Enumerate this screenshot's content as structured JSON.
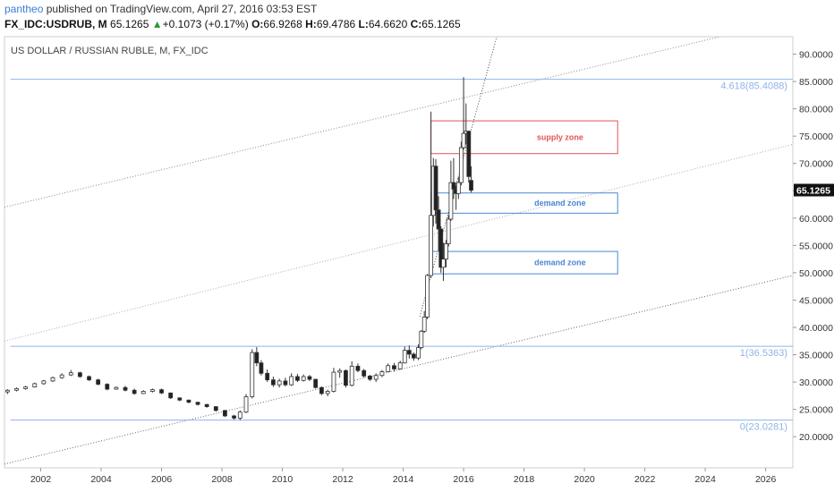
{
  "header": {
    "author": "pantheo",
    "published": "published on TradingView.com, April 27, 2016 03:53 EST",
    "symbol": "FX_IDC:USDRUB, M",
    "last": "65.1265",
    "change_arrow": "▲",
    "change": "+0.1073 (+0.17%)",
    "o_label": "O:",
    "o_value": "66.9268",
    "h_label": "H:",
    "h_value": "69.4786",
    "l_label": "L:",
    "l_value": "64.6620",
    "c_label": "C:",
    "c_value": "65.1265"
  },
  "chart_data": {
    "type": "candlestick",
    "title": "US DOLLAR / RUSSIAN RUBLE, M, FX_IDC",
    "x_range": [
      2000.8,
      2026.9
    ],
    "y_range": [
      14.3,
      93.2
    ],
    "y_ticks": [
      "20.0000",
      "25.0000",
      "30.0000",
      "35.0000",
      "40.0000",
      "45.0000",
      "50.0000",
      "55.0000",
      "60.0000",
      "65.0000",
      "70.0000",
      "75.0000",
      "80.0000",
      "85.0000",
      "90.0000"
    ],
    "y_tick_values": [
      20,
      25,
      30,
      35,
      40,
      45,
      50,
      55,
      60,
      65,
      70,
      75,
      80,
      85,
      90
    ],
    "x_ticks": [
      "2002",
      "2004",
      "2006",
      "2008",
      "2010",
      "2012",
      "2014",
      "2016",
      "2018",
      "2020",
      "2022",
      "2024",
      "2026"
    ],
    "x_tick_values": [
      2002,
      2004,
      2006,
      2008,
      2010,
      2012,
      2014,
      2016,
      2018,
      2020,
      2022,
      2024,
      2026
    ],
    "last_price_label": "65.1265",
    "last_price": 65.1265,
    "fib_levels": [
      {
        "label": "4.618(85.4088)",
        "value": 85.4088
      },
      {
        "label": "1(36.5363)",
        "value": 36.5363
      },
      {
        "label": "0(23.0281)",
        "value": 23.0281
      }
    ],
    "zones": [
      {
        "label": "supply zone",
        "color": "#e05555",
        "x_start": 2014.92,
        "x_end": 2021.1,
        "y_low": 71.8,
        "y_high": 77.8
      },
      {
        "label": "demand zone",
        "color": "#4a86d4",
        "x_start": 2014.92,
        "x_end": 2021.1,
        "y_low": 60.9,
        "y_high": 64.6
      },
      {
        "label": "demand zone",
        "color": "#4a86d4",
        "x_start": 2014.92,
        "x_end": 2021.1,
        "y_low": 49.8,
        "y_high": 53.9
      }
    ],
    "trend_lines": [
      {
        "x1": 2000.8,
        "y1": 15.0,
        "x2": 2026.9,
        "y2": 49.5,
        "color": "#666"
      },
      {
        "x1": 2000.8,
        "y1": 37.5,
        "x2": 2026.9,
        "y2": 73.5,
        "color": "#aaa"
      },
      {
        "x1": 2000.8,
        "y1": 62.0,
        "x2": 2024.5,
        "y2": 93.2,
        "color": "#888"
      },
      {
        "x1": 2014.55,
        "y1": 42.0,
        "x2": 2017.1,
        "y2": 93.2,
        "color": "#444"
      }
    ],
    "candles": [
      {
        "t": 2000.9,
        "o": 28.2,
        "h": 28.7,
        "l": 27.8,
        "c": 28.5
      },
      {
        "t": 2001.2,
        "o": 28.5,
        "h": 29.0,
        "l": 28.3,
        "c": 28.8
      },
      {
        "t": 2001.5,
        "o": 28.8,
        "h": 29.3,
        "l": 28.6,
        "c": 29.1
      },
      {
        "t": 2001.8,
        "o": 29.1,
        "h": 29.9,
        "l": 29.0,
        "c": 29.7
      },
      {
        "t": 2002.1,
        "o": 29.7,
        "h": 30.4,
        "l": 29.5,
        "c": 30.2
      },
      {
        "t": 2002.4,
        "o": 30.2,
        "h": 31.0,
        "l": 30.0,
        "c": 30.8
      },
      {
        "t": 2002.7,
        "o": 30.8,
        "h": 31.6,
        "l": 30.6,
        "c": 31.3
      },
      {
        "t": 2003.0,
        "o": 31.3,
        "h": 32.2,
        "l": 31.1,
        "c": 31.7
      },
      {
        "t": 2003.3,
        "o": 31.7,
        "h": 31.9,
        "l": 30.8,
        "c": 31.0
      },
      {
        "t": 2003.6,
        "o": 31.0,
        "h": 31.2,
        "l": 30.2,
        "c": 30.4
      },
      {
        "t": 2003.9,
        "o": 30.4,
        "h": 30.6,
        "l": 29.4,
        "c": 29.6
      },
      {
        "t": 2004.2,
        "o": 29.6,
        "h": 29.8,
        "l": 28.5,
        "c": 28.7
      },
      {
        "t": 2004.5,
        "o": 28.7,
        "h": 29.2,
        "l": 28.6,
        "c": 29.0
      },
      {
        "t": 2004.8,
        "o": 29.0,
        "h": 29.3,
        "l": 28.3,
        "c": 28.5
      },
      {
        "t": 2005.1,
        "o": 28.5,
        "h": 28.8,
        "l": 27.7,
        "c": 27.9
      },
      {
        "t": 2005.4,
        "o": 27.9,
        "h": 28.5,
        "l": 27.8,
        "c": 28.3
      },
      {
        "t": 2005.7,
        "o": 28.3,
        "h": 28.8,
        "l": 28.1,
        "c": 28.6
      },
      {
        "t": 2006.0,
        "o": 28.6,
        "h": 28.8,
        "l": 27.8,
        "c": 28.0
      },
      {
        "t": 2006.3,
        "o": 28.0,
        "h": 28.1,
        "l": 26.9,
        "c": 27.1
      },
      {
        "t": 2006.6,
        "o": 27.1,
        "h": 27.2,
        "l": 26.5,
        "c": 26.7
      },
      {
        "t": 2006.9,
        "o": 26.7,
        "h": 26.8,
        "l": 26.1,
        "c": 26.3
      },
      {
        "t": 2007.2,
        "o": 26.3,
        "h": 26.4,
        "l": 25.7,
        "c": 25.9
      },
      {
        "t": 2007.5,
        "o": 25.9,
        "h": 26.0,
        "l": 25.3,
        "c": 25.5
      },
      {
        "t": 2007.8,
        "o": 25.5,
        "h": 25.6,
        "l": 24.6,
        "c": 24.8
      },
      {
        "t": 2008.1,
        "o": 24.8,
        "h": 24.9,
        "l": 23.6,
        "c": 23.8
      },
      {
        "t": 2008.4,
        "o": 23.8,
        "h": 24.0,
        "l": 23.1,
        "c": 23.4
      },
      {
        "t": 2008.6,
        "o": 23.4,
        "h": 24.8,
        "l": 23.0,
        "c": 24.5
      },
      {
        "t": 2008.8,
        "o": 24.5,
        "h": 27.8,
        "l": 24.3,
        "c": 27.3
      },
      {
        "t": 2009.0,
        "o": 27.3,
        "h": 36.0,
        "l": 27.0,
        "c": 35.4
      },
      {
        "t": 2009.15,
        "o": 35.4,
        "h": 36.4,
        "l": 32.9,
        "c": 33.5
      },
      {
        "t": 2009.3,
        "o": 33.5,
        "h": 34.0,
        "l": 31.2,
        "c": 31.6
      },
      {
        "t": 2009.5,
        "o": 31.6,
        "h": 32.3,
        "l": 30.0,
        "c": 30.4
      },
      {
        "t": 2009.7,
        "o": 30.4,
        "h": 31.0,
        "l": 29.1,
        "c": 29.5
      },
      {
        "t": 2009.9,
        "o": 29.5,
        "h": 30.6,
        "l": 29.0,
        "c": 30.2
      },
      {
        "t": 2010.1,
        "o": 30.2,
        "h": 30.8,
        "l": 29.2,
        "c": 29.5
      },
      {
        "t": 2010.3,
        "o": 29.5,
        "h": 31.6,
        "l": 29.3,
        "c": 31.0
      },
      {
        "t": 2010.5,
        "o": 31.0,
        "h": 31.5,
        "l": 30.0,
        "c": 30.3
      },
      {
        "t": 2010.7,
        "o": 30.3,
        "h": 31.4,
        "l": 30.1,
        "c": 31.0
      },
      {
        "t": 2010.9,
        "o": 31.0,
        "h": 31.3,
        "l": 30.2,
        "c": 30.5
      },
      {
        "t": 2011.1,
        "o": 30.5,
        "h": 30.6,
        "l": 28.8,
        "c": 29.0
      },
      {
        "t": 2011.3,
        "o": 29.0,
        "h": 29.2,
        "l": 27.6,
        "c": 27.9
      },
      {
        "t": 2011.5,
        "o": 27.9,
        "h": 28.6,
        "l": 27.4,
        "c": 28.3
      },
      {
        "t": 2011.7,
        "o": 28.3,
        "h": 32.6,
        "l": 28.1,
        "c": 31.8
      },
      {
        "t": 2011.9,
        "o": 31.8,
        "h": 32.5,
        "l": 30.8,
        "c": 32.1
      },
      {
        "t": 2012.1,
        "o": 32.1,
        "h": 32.3,
        "l": 29.0,
        "c": 29.4
      },
      {
        "t": 2012.3,
        "o": 29.4,
        "h": 33.8,
        "l": 29.2,
        "c": 32.9
      },
      {
        "t": 2012.5,
        "o": 32.9,
        "h": 33.4,
        "l": 31.8,
        "c": 32.1
      },
      {
        "t": 2012.7,
        "o": 32.1,
        "h": 32.4,
        "l": 30.8,
        "c": 31.1
      },
      {
        "t": 2012.9,
        "o": 31.1,
        "h": 31.3,
        "l": 30.2,
        "c": 30.5
      },
      {
        "t": 2013.1,
        "o": 30.5,
        "h": 31.6,
        "l": 30.0,
        "c": 31.2
      },
      {
        "t": 2013.3,
        "o": 31.2,
        "h": 32.2,
        "l": 30.9,
        "c": 31.9
      },
      {
        "t": 2013.5,
        "o": 31.9,
        "h": 33.4,
        "l": 31.8,
        "c": 33.0
      },
      {
        "t": 2013.7,
        "o": 33.0,
        "h": 33.5,
        "l": 31.9,
        "c": 32.4
      },
      {
        "t": 2013.9,
        "o": 32.4,
        "h": 33.9,
        "l": 32.3,
        "c": 33.5
      },
      {
        "t": 2014.05,
        "o": 33.5,
        "h": 36.5,
        "l": 33.4,
        "c": 35.8
      },
      {
        "t": 2014.2,
        "o": 35.8,
        "h": 36.7,
        "l": 34.3,
        "c": 35.1
      },
      {
        "t": 2014.35,
        "o": 35.1,
        "h": 35.4,
        "l": 33.9,
        "c": 34.4
      },
      {
        "t": 2014.5,
        "o": 34.4,
        "h": 36.9,
        "l": 34.0,
        "c": 36.3
      },
      {
        "t": 2014.6,
        "o": 36.3,
        "h": 39.5,
        "l": 36.0,
        "c": 39.3
      },
      {
        "t": 2014.7,
        "o": 39.3,
        "h": 43.0,
        "l": 39.0,
        "c": 41.9
      },
      {
        "t": 2014.8,
        "o": 41.9,
        "h": 49.8,
        "l": 41.5,
        "c": 49.5
      },
      {
        "t": 2014.92,
        "o": 49.5,
        "h": 79.5,
        "l": 49.0,
        "c": 60.5
      },
      {
        "t": 2015.0,
        "o": 60.5,
        "h": 71.0,
        "l": 58.5,
        "c": 69.5
      },
      {
        "t": 2015.08,
        "o": 69.5,
        "h": 70.8,
        "l": 59.0,
        "c": 61.5
      },
      {
        "t": 2015.17,
        "o": 61.5,
        "h": 64.0,
        "l": 54.0,
        "c": 58.0
      },
      {
        "t": 2015.25,
        "o": 58.0,
        "h": 58.5,
        "l": 50.0,
        "c": 51.0
      },
      {
        "t": 2015.33,
        "o": 51.0,
        "h": 55.5,
        "l": 48.5,
        "c": 52.5
      },
      {
        "t": 2015.42,
        "o": 52.5,
        "h": 56.0,
        "l": 51.0,
        "c": 55.3
      },
      {
        "t": 2015.5,
        "o": 55.3,
        "h": 60.5,
        "l": 54.8,
        "c": 59.8
      },
      {
        "t": 2015.58,
        "o": 59.8,
        "h": 70.5,
        "l": 59.5,
        "c": 66.5
      },
      {
        "t": 2015.67,
        "o": 66.5,
        "h": 71.0,
        "l": 63.5,
        "c": 65.3
      },
      {
        "t": 2015.75,
        "o": 65.3,
        "h": 66.0,
        "l": 61.5,
        "c": 64.5
      },
      {
        "t": 2015.83,
        "o": 64.5,
        "h": 67.5,
        "l": 63.5,
        "c": 66.5
      },
      {
        "t": 2015.92,
        "o": 66.5,
        "h": 74.0,
        "l": 66.0,
        "c": 72.9
      },
      {
        "t": 2016.0,
        "o": 72.9,
        "h": 85.8,
        "l": 72.5,
        "c": 75.5
      },
      {
        "t": 2016.08,
        "o": 75.5,
        "h": 81.0,
        "l": 73.5,
        "c": 75.9
      },
      {
        "t": 2016.17,
        "o": 75.9,
        "h": 76.0,
        "l": 66.5,
        "c": 67.6
      },
      {
        "t": 2016.25,
        "o": 66.9,
        "h": 69.5,
        "l": 64.7,
        "c": 65.1
      }
    ]
  }
}
